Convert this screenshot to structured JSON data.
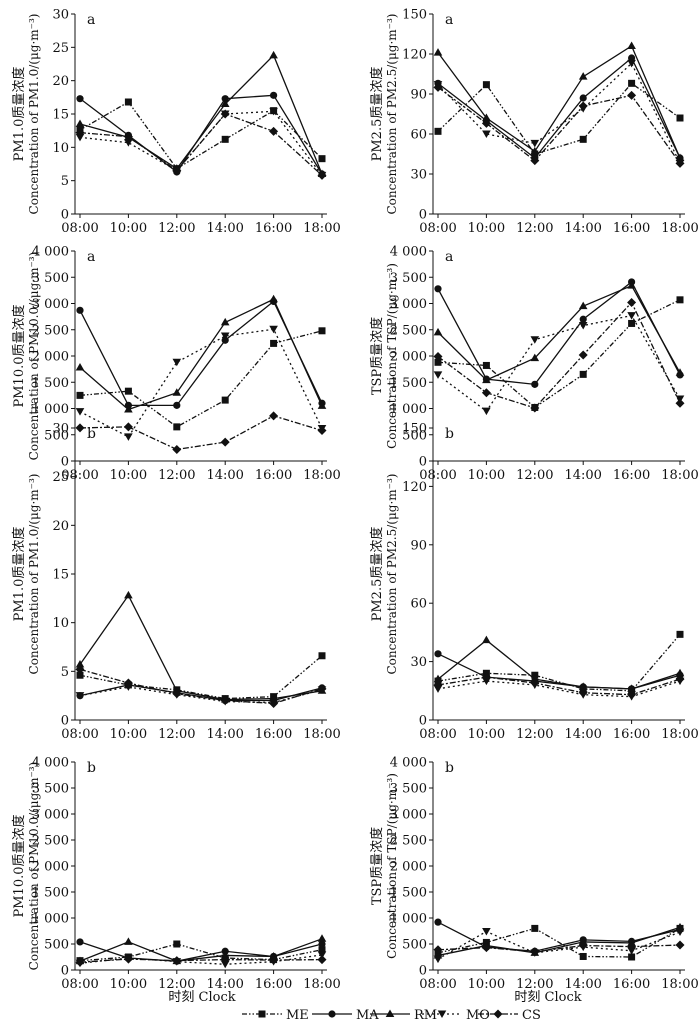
{
  "figure": {
    "x_axis_title": "时刻 Clock",
    "x_ticks": [
      "08:00",
      "10:00",
      "12:00",
      "14:00",
      "16:00",
      "18:00"
    ],
    "legend": [
      "ME",
      "MA",
      "RM",
      "MO",
      "CS"
    ]
  },
  "chart_data": [
    {
      "type": "line",
      "panel": "a",
      "ylabel_cn": "PM1.0质量浓度",
      "ylabel_en": "Concentration of PM1.0/(μg·m⁻³)",
      "ylim": [
        0,
        30
      ],
      "yticks": [
        "0",
        "5",
        "10",
        "15",
        "20",
        "25",
        "30"
      ],
      "categories": [
        "08:00",
        "10:00",
        "12:00",
        "14:00",
        "16:00",
        "18:00"
      ],
      "series": [
        {
          "name": "ME",
          "values": [
            12.6,
            16.8,
            6.8,
            11.2,
            15.5,
            8.3
          ]
        },
        {
          "name": "MA",
          "values": [
            17.3,
            11.8,
            6.3,
            17.3,
            17.8,
            6.0
          ]
        },
        {
          "name": "RM",
          "values": [
            13.5,
            11.5,
            6.8,
            16.5,
            23.8,
            6.0
          ]
        },
        {
          "name": "MO",
          "values": [
            11.5,
            10.7,
            6.5,
            15.0,
            15.4,
            5.8
          ]
        },
        {
          "name": "CS",
          "values": [
            12.2,
            11.6,
            6.5,
            15.0,
            12.4,
            5.8
          ]
        }
      ]
    },
    {
      "type": "line",
      "panel": "a",
      "ylabel_cn": "PM2.5质量浓度",
      "ylabel_en": "Concentration of PM2.5/(μg·m⁻³)",
      "ylim": [
        0,
        150
      ],
      "yticks": [
        "0",
        "30",
        "60",
        "90",
        "120",
        "150"
      ],
      "categories": [
        "08:00",
        "10:00",
        "12:00",
        "14:00",
        "16:00",
        "18:00"
      ],
      "series": [
        {
          "name": "ME",
          "values": [
            62,
            97,
            45,
            56,
            98,
            72
          ]
        },
        {
          "name": "MA",
          "values": [
            98,
            70,
            42,
            87,
            117,
            42
          ]
        },
        {
          "name": "RM",
          "values": [
            121,
            72,
            47,
            103,
            126,
            42
          ]
        },
        {
          "name": "MO",
          "values": [
            97,
            60,
            53,
            79,
            113,
            38
          ]
        },
        {
          "name": "CS",
          "values": [
            95,
            68,
            40,
            81,
            89,
            38
          ]
        }
      ]
    },
    {
      "type": "line",
      "panel": "a",
      "ylabel_cn": "PM10.0质量浓度",
      "ylabel_en": "Concentration of PM10.0/(μg·m⁻³)",
      "ylim": [
        0,
        4000
      ],
      "yticks": [
        "0",
        "500",
        "1 000",
        "1 500",
        "2 000",
        "2 500",
        "3 000",
        "3 500",
        "4 000"
      ],
      "categories": [
        "08:00",
        "10:00",
        "12:00",
        "14:00",
        "16:00",
        "18:00"
      ],
      "series": [
        {
          "name": "ME",
          "values": [
            1250,
            1330,
            650,
            1160,
            2240,
            2480
          ]
        },
        {
          "name": "MA",
          "values": [
            2870,
            1060,
            1060,
            2300,
            3040,
            1100
          ]
        },
        {
          "name": "RM",
          "values": [
            1780,
            980,
            1300,
            2640,
            3080,
            1050
          ]
        },
        {
          "name": "MO",
          "values": [
            940,
            460,
            1880,
            2380,
            2510,
            620
          ]
        },
        {
          "name": "CS",
          "values": [
            630,
            650,
            220,
            360,
            860,
            580
          ]
        }
      ]
    },
    {
      "type": "line",
      "panel": "a",
      "ylabel_cn": "TSP质量浓度",
      "ylabel_en": "Concentration of TSP/(μg·m⁻³)",
      "ylim": [
        0,
        4000
      ],
      "yticks": [
        "0",
        "500",
        "1 000",
        "1 500",
        "2 000",
        "2 500",
        "3 000",
        "3 500",
        "4 000"
      ],
      "categories": [
        "08:00",
        "10:00",
        "12:00",
        "14:00",
        "16:00",
        "18:00"
      ],
      "series": [
        {
          "name": "ME",
          "values": [
            1880,
            1820,
            1020,
            1650,
            2620,
            3070
          ]
        },
        {
          "name": "MA",
          "values": [
            3280,
            1560,
            1460,
            2700,
            3410,
            1640
          ]
        },
        {
          "name": "RM",
          "values": [
            2450,
            1540,
            1960,
            2950,
            3340,
            1680
          ]
        },
        {
          "name": "MO",
          "values": [
            1640,
            950,
            2310,
            2580,
            2770,
            1180
          ]
        },
        {
          "name": "CS",
          "values": [
            1990,
            1300,
            1010,
            2020,
            3020,
            1100
          ]
        }
      ]
    },
    {
      "type": "line",
      "panel": "b",
      "ylabel_cn": "PM1.0质量浓度",
      "ylabel_en": "Concentration of PM1.0/(μg·m⁻³)",
      "ylim": [
        0,
        30
      ],
      "yticks": [
        "0",
        "5",
        "10",
        "15",
        "20",
        "25",
        "30"
      ],
      "categories": [
        "08:00",
        "10:00",
        "12:00",
        "14:00",
        "16:00",
        "18:00"
      ],
      "series": [
        {
          "name": "ME",
          "values": [
            4.6,
            3.6,
            3.1,
            2.2,
            2.4,
            6.6
          ]
        },
        {
          "name": "MA",
          "values": [
            2.5,
            3.6,
            2.8,
            2.0,
            2.0,
            3.3
          ]
        },
        {
          "name": "RM",
          "values": [
            5.7,
            12.8,
            3.0,
            2.1,
            2.2,
            3.0
          ]
        },
        {
          "name": "MO",
          "values": [
            2.5,
            3.4,
            2.6,
            1.9,
            1.8,
            3.1
          ]
        },
        {
          "name": "CS",
          "values": [
            5.2,
            3.8,
            2.7,
            2.0,
            1.7,
            3.2
          ]
        }
      ]
    },
    {
      "type": "line",
      "panel": "b",
      "ylabel_cn": "PM2.5质量浓度",
      "ylabel_en": "Concentration of PM2.5/(μg·m⁻³)",
      "ylim": [
        0,
        150
      ],
      "yticks": [
        "0",
        "30",
        "60",
        "90",
        "120",
        "150"
      ],
      "categories": [
        "08:00",
        "10:00",
        "12:00",
        "14:00",
        "16:00",
        "18:00"
      ],
      "series": [
        {
          "name": "ME",
          "values": [
            20,
            24,
            23,
            16,
            15,
            44
          ]
        },
        {
          "name": "MA",
          "values": [
            34,
            22,
            20,
            17,
            16,
            23
          ]
        },
        {
          "name": "RM",
          "values": [
            21,
            41,
            21,
            17,
            16,
            24
          ]
        },
        {
          "name": "MO",
          "values": [
            16,
            20,
            18,
            13,
            12,
            20
          ]
        },
        {
          "name": "CS",
          "values": [
            18,
            22,
            19,
            14,
            13,
            21
          ]
        }
      ]
    },
    {
      "type": "line",
      "panel": "b",
      "ylabel_cn": "PM10.0质量浓度",
      "ylabel_en": "Concentration of PM10.0/(μg·m⁻³)",
      "ylim": [
        0,
        4000
      ],
      "yticks": [
        "0",
        "500",
        "1 000",
        "1 500",
        "2 000",
        "2 500",
        "3 000",
        "3 500",
        "4 000"
      ],
      "categories": [
        "08:00",
        "10:00",
        "12:00",
        "14:00",
        "16:00",
        "18:00"
      ],
      "series": [
        {
          "name": "ME",
          "values": [
            180,
            250,
            500,
            230,
            200,
            390
          ]
        },
        {
          "name": "MA",
          "values": [
            540,
            230,
            170,
            360,
            260,
            500
          ]
        },
        {
          "name": "RM",
          "values": [
            170,
            540,
            170,
            280,
            260,
            600
          ]
        },
        {
          "name": "MO",
          "values": [
            130,
            230,
            160,
            110,
            160,
            290
          ]
        },
        {
          "name": "CS",
          "values": [
            150,
            210,
            180,
            200,
            190,
            200
          ]
        }
      ]
    },
    {
      "type": "line",
      "panel": "b",
      "ylabel_cn": "TSP质量浓度",
      "ylabel_en": "Concentration of TSP/(μg·m⁻³)",
      "ylim": [
        0,
        4000
      ],
      "yticks": [
        "0",
        "500",
        "1 000",
        "1 500",
        "2 000",
        "2 500",
        "3 000",
        "3 500",
        "4 000"
      ],
      "categories": [
        "08:00",
        "10:00",
        "12:00",
        "14:00",
        "16:00",
        "18:00"
      ],
      "series": [
        {
          "name": "ME",
          "values": [
            330,
            530,
            800,
            260,
            250,
            800
          ]
        },
        {
          "name": "MA",
          "values": [
            920,
            440,
            360,
            580,
            550,
            780
          ]
        },
        {
          "name": "RM",
          "values": [
            280,
            470,
            330,
            540,
            520,
            820
          ]
        },
        {
          "name": "MO",
          "values": [
            210,
            740,
            330,
            440,
            370,
            730
          ]
        },
        {
          "name": "CS",
          "values": [
            390,
            430,
            350,
            470,
            450,
            480
          ]
        }
      ]
    }
  ]
}
